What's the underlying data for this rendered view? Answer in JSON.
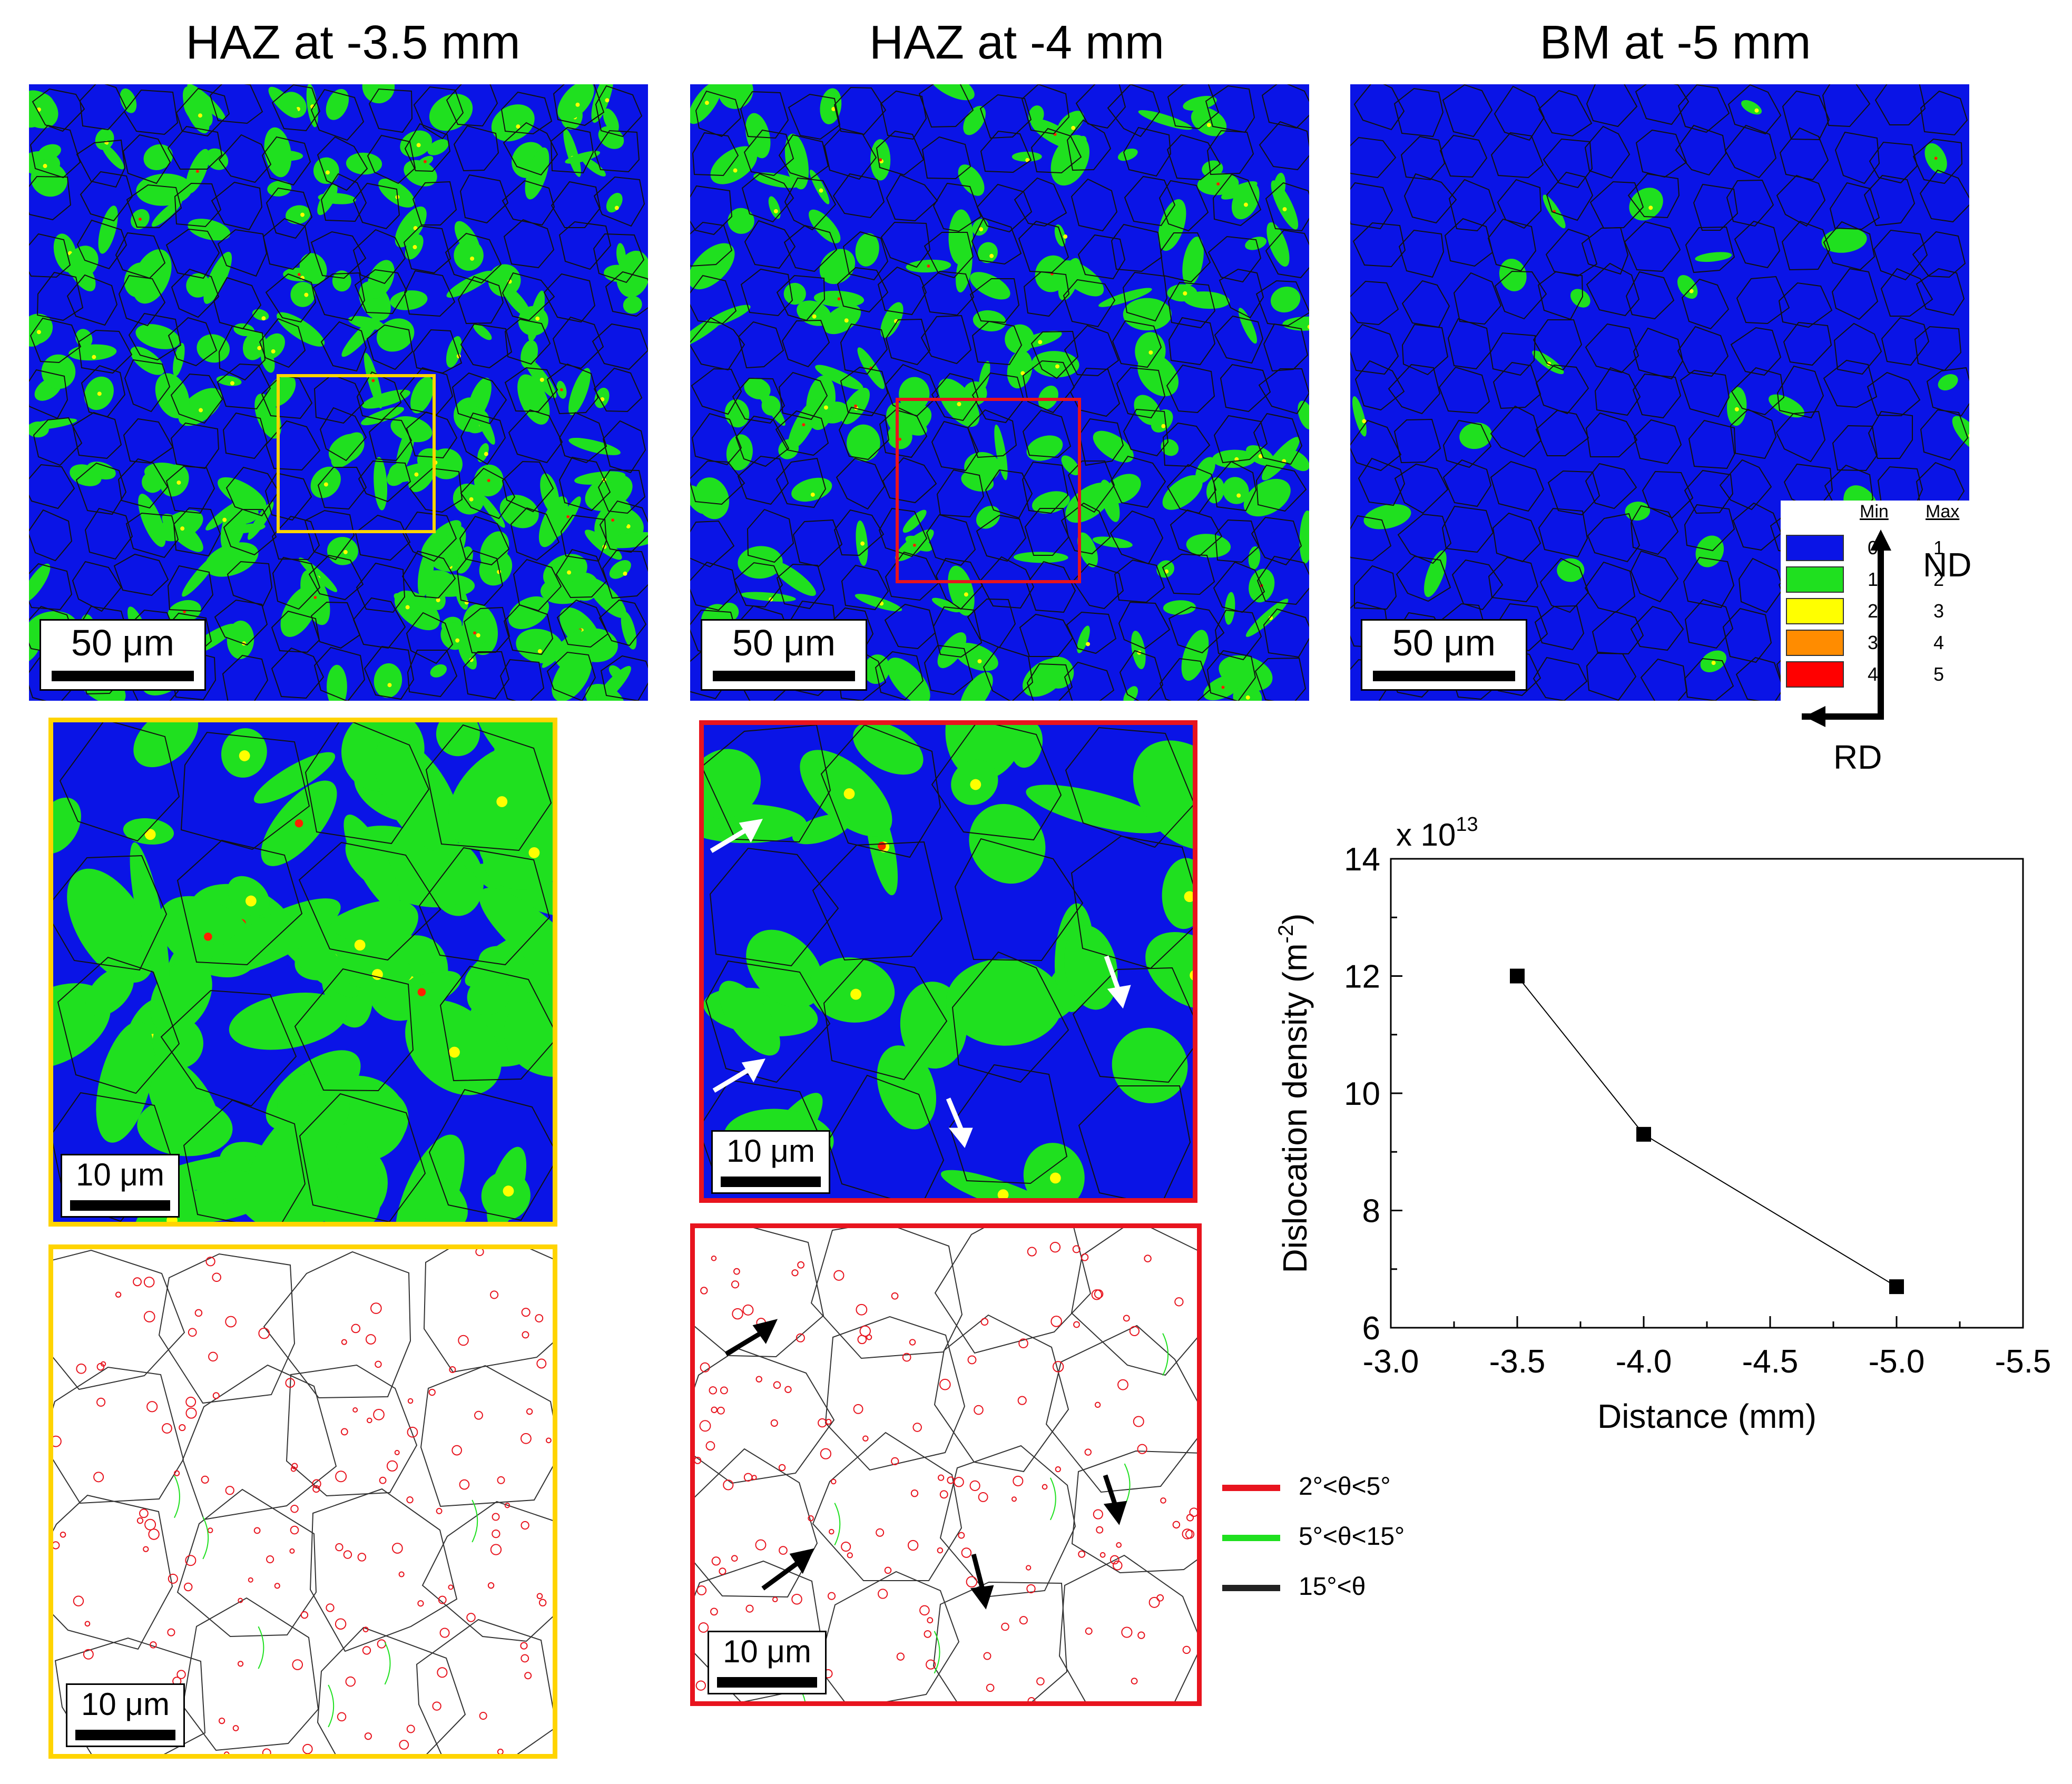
{
  "titles": {
    "haz35": "HAZ at -3.5 mm",
    "haz4": "HAZ at -4 mm",
    "bm5": "BM at -5 mm"
  },
  "scalebars": {
    "large": "50 μm",
    "small": "10 μm"
  },
  "kam_legend": {
    "min_header": "Min",
    "max_header": "Max",
    "rows": [
      {
        "min": "0",
        "max": "1",
        "color": "#0a14e6"
      },
      {
        "min": "1",
        "max": "2",
        "color": "#1fe01f"
      },
      {
        "min": "2",
        "max": "3",
        "color": "#ffff00"
      },
      {
        "min": "3",
        "max": "4",
        "color": "#ff8c00"
      },
      {
        "min": "4",
        "max": "5",
        "color": "#ff0000"
      }
    ]
  },
  "axes_labels": {
    "nd": "ND",
    "rd": "RD"
  },
  "boundary_legend": [
    {
      "label": "2°<θ<5°",
      "color": "#e8141e"
    },
    {
      "label": "5°<θ<15°",
      "color": "#1fe01f"
    },
    {
      "label": "15°<θ",
      "color": "#222222"
    }
  ],
  "colors": {
    "haz35_box": "#ffd400",
    "haz4_box": "#e8141e",
    "kam_blue": "#0a14e6",
    "kam_green": "#1fe01f"
  },
  "chart_data": {
    "type": "line",
    "x": [
      -3.5,
      -4.0,
      -5.0
    ],
    "y": [
      12.0,
      9.3,
      6.7
    ],
    "xlabel": "Distance (mm)",
    "ylabel": "Dislocation density (m",
    "ylabel_sup": "-2",
    "ylabel_end": ")",
    "multiplier": "x 10",
    "multiplier_exp": "13",
    "xlim": [
      -3.0,
      -5.5
    ],
    "ylim": [
      6,
      14
    ],
    "xticks": [
      "-3.0",
      "-3.5",
      "-4.0",
      "-4.5",
      "-5.0",
      "-5.5"
    ],
    "yticks": [
      "6",
      "8",
      "10",
      "12",
      "14"
    ],
    "grid": false,
    "marker": "square"
  }
}
